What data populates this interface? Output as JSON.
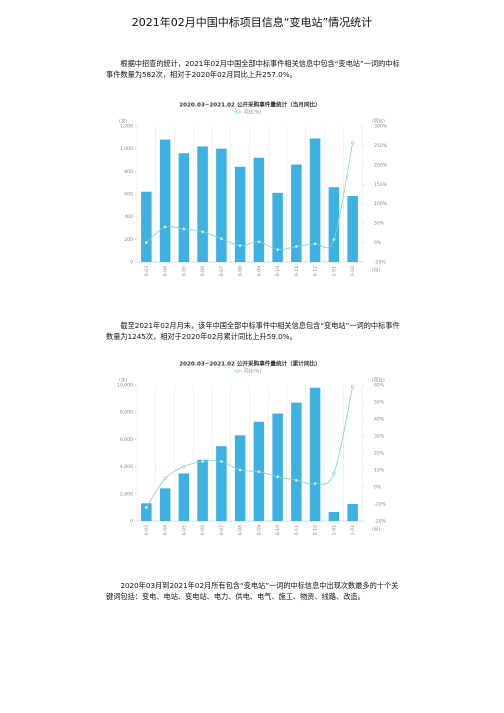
{
  "title": "2021年02月中国中标项目信息“变电站”情况统计",
  "paragraphs": [
    "根据中招查的统计，2021年02月中国全部中标事件相关信息中包含“变电站”一词的中标事件数量为582次，相对于2020年02月同比上升257.0%。",
    "截至2021年02月月末，该年中国全部中标事件中相关信息包含“变电站”一词的中标事件数量为1245次，相对于2020年02月累计同比上升59.0%。",
    "2020年03月到2021年02月所有包含“变电站”一词的中标信息中出现次数最多的十个关键词包括：变电、电站、变电站、电力、供电、电气、施工、物资、线路、改造。"
  ],
  "chart_data": [
    {
      "type": "bar",
      "title": "2020.03~2021.02 公开采购事件量统计（当月同比）",
      "y_label": "(次)",
      "y2_label": "(同比)",
      "x_label": "(月)",
      "grid": true,
      "categories": [
        "2020-03",
        "2020-04",
        "2020-05",
        "2020-06",
        "2020-07",
        "2020-08",
        "2020-09",
        "2020-10",
        "2020-11",
        "2020-12",
        "2021-01",
        "2021-02"
      ],
      "series": [
        {
          "color": "#3eb1e3",
          "values": [
            620,
            1080,
            960,
            1020,
            1000,
            840,
            920,
            610,
            860,
            1090,
            660,
            582
          ]
        },
        {
          "name": "同比(%)",
          "type": "line",
          "axis": "y2",
          "color": "#7fcfd3",
          "values": [
            0,
            40,
            35,
            28,
            10,
            -8,
            2,
            -18,
            -10,
            -3,
            8,
            257
          ]
        }
      ],
      "ylim": [
        0,
        1200
      ],
      "yticks": [
        0,
        200,
        400,
        600,
        800,
        {
          "value": 1000,
          "label": "1,000"
        },
        {
          "value": 1200,
          "label": "1,200"
        }
      ],
      "y2lim": [
        -50,
        300
      ],
      "y2ticks": [
        {
          "value": -50,
          "label": "-50%"
        },
        {
          "value": 0,
          "label": "0%"
        },
        {
          "value": 50,
          "label": "50%"
        },
        {
          "value": 100,
          "label": "100%"
        },
        {
          "value": 150,
          "label": "150%"
        },
        {
          "value": 200,
          "label": "200%"
        },
        {
          "value": 250,
          "label": "250%"
        },
        {
          "value": 300,
          "label": "300%"
        }
      ]
    },
    {
      "type": "bar",
      "title": "2020.03~2021.02 公开采购事件量统计（累计同比）",
      "y_label": "(次)",
      "y2_label": "(同比)",
      "x_label": "(月)",
      "grid": true,
      "categories": [
        "2020-03",
        "2020-04",
        "2020-05",
        "2020-06",
        "2020-07",
        "2020-08",
        "2020-09",
        "2020-10",
        "2020-11",
        "2020-12",
        "2021-01",
        "2021-02"
      ],
      "series": [
        {
          "color": "#3eb1e3",
          "values": [
            1300,
            2400,
            3500,
            4500,
            5500,
            6300,
            7300,
            7900,
            8700,
            9800,
            660,
            1245
          ]
        },
        {
          "name": "同比(%)",
          "type": "line",
          "axis": "y2",
          "color": "#7fcfd3",
          "values": [
            -12,
            5,
            12,
            15,
            15,
            10,
            9,
            6,
            4,
            2,
            8,
            59
          ]
        }
      ],
      "ylim": [
        0,
        10000
      ],
      "yticks": [
        0,
        {
          "value": 2000,
          "label": "2,000"
        },
        {
          "value": 4000,
          "label": "4,000"
        },
        {
          "value": 6000,
          "label": "6,000"
        },
        {
          "value": 8000,
          "label": "8,000"
        },
        {
          "value": 10000,
          "label": "10,000"
        }
      ],
      "y2lim": [
        -20,
        60
      ],
      "y2ticks": [
        {
          "value": -20,
          "label": "-20%"
        },
        {
          "value": -10,
          "label": "-10%"
        },
        {
          "value": 0,
          "label": "0%"
        },
        {
          "value": 10,
          "label": "10%"
        },
        {
          "value": 20,
          "label": "20%"
        },
        {
          "value": 30,
          "label": "30%"
        },
        {
          "value": 40,
          "label": "40%"
        },
        {
          "value": 50,
          "label": "50%"
        },
        {
          "value": 60,
          "label": "60%"
        }
      ]
    }
  ]
}
